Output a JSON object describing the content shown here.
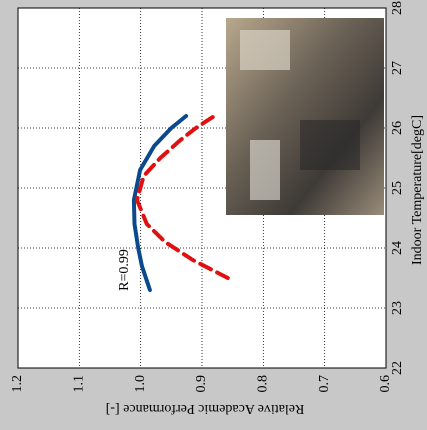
{
  "chart_data": {
    "type": "line",
    "orientation": "rotated",
    "xlabel": "Indoor Temperature[degC]",
    "ylabel": "Relative Academic Performance [-]",
    "xlim": [
      22,
      28
    ],
    "xticks": [
      22,
      23,
      24,
      25,
      26,
      27,
      28
    ],
    "ylim": [
      0.6,
      1.2
    ],
    "yticks": [
      {
        "value": 0.6,
        "label": "0.6"
      },
      {
        "value": 0.7,
        "label": "0.7"
      },
      {
        "value": 0.8,
        "label": "0.8"
      },
      {
        "value": 0.9,
        "label": "0.9"
      },
      {
        "value": 1,
        "label": "1.0"
      },
      {
        "value": 1.1,
        "label": "1.1"
      },
      {
        "value": 1.2,
        "label": "1.2"
      }
    ],
    "grid": true,
    "annotation": "R=0.99",
    "series": [
      {
        "color": "#0a4a8c",
        "dashed": false,
        "x": [
          23.3,
          23.7,
          24.0,
          24.4,
          24.8,
          25.3,
          25.7,
          26.0,
          26.2
        ],
        "values": [
          0.985,
          0.998,
          1.004,
          1.01,
          1.011,
          1.001,
          0.978,
          0.95,
          0.926
        ]
      },
      {
        "color": "#e01010",
        "dashed": true,
        "x": [
          23.5,
          23.8,
          24.1,
          24.4,
          24.8,
          25.2,
          25.5,
          25.8,
          26.0,
          26.2
        ],
        "values": [
          0.858,
          0.915,
          0.96,
          0.99,
          1.006,
          0.995,
          0.968,
          0.935,
          0.91,
          0.88
        ]
      }
    ]
  }
}
